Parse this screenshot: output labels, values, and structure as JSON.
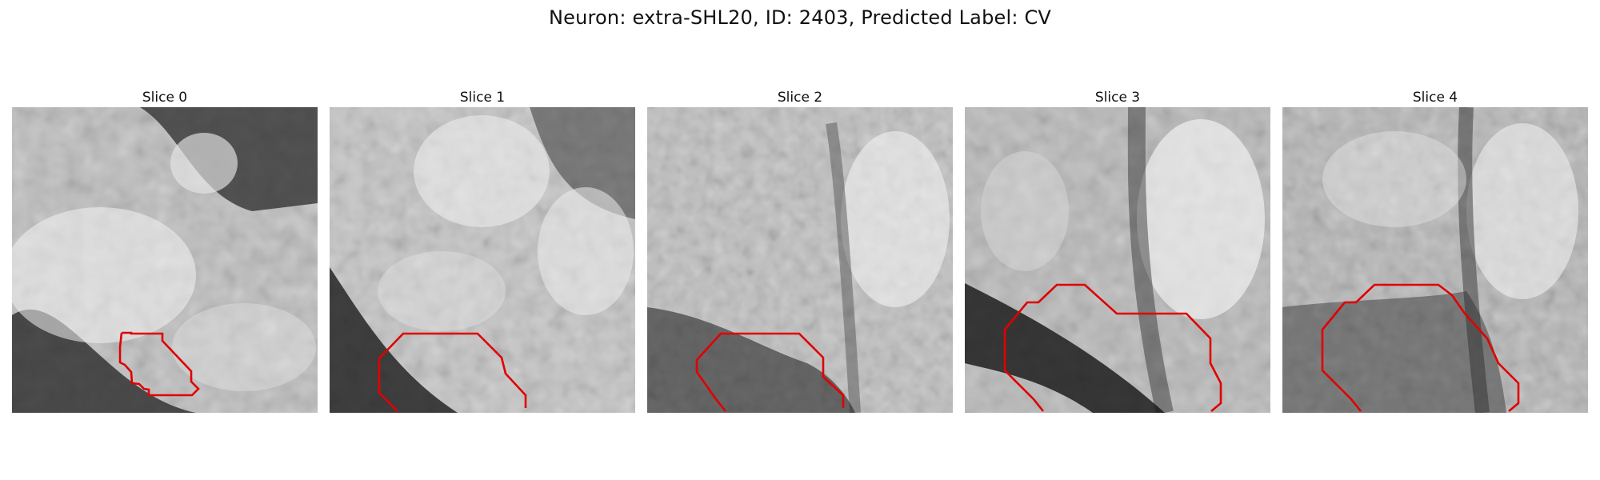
{
  "figure": {
    "title": "Neuron: extra-SHL20, ID: 2403, Predicted Label: CV"
  },
  "panels": [
    {
      "title": "Slice 0"
    },
    {
      "title": "Slice 1"
    },
    {
      "title": "Slice 2"
    },
    {
      "title": "Slice 3"
    },
    {
      "title": "Slice 4"
    }
  ],
  "colors": {
    "contour": "#e00000",
    "background": "#ffffff"
  }
}
